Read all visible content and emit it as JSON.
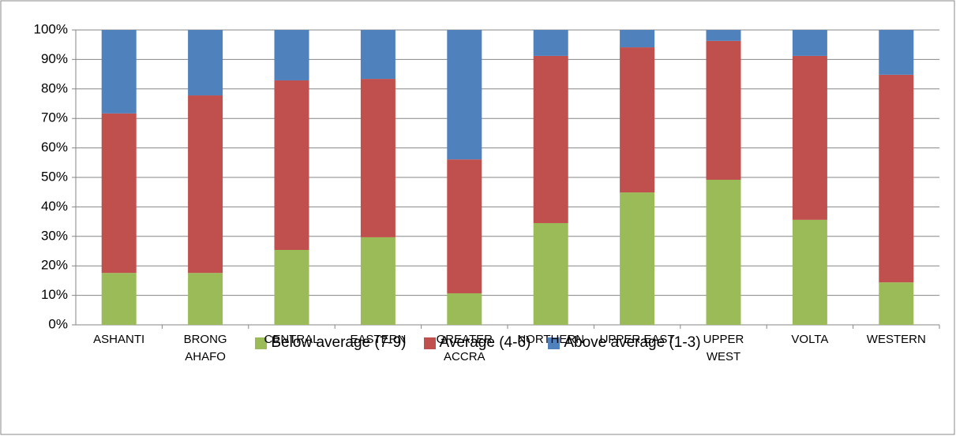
{
  "chart_data": {
    "type": "stacked_bar",
    "categories": [
      "ASHANTI",
      "BRONG\nAHAFO",
      "CENTRAL",
      "EASTERN",
      "GREATER\nACCRA",
      "NORTHERN",
      "UPPER EAST",
      "UPPER\nWEST",
      "VOLTA",
      "WESTERN"
    ],
    "series": [
      {
        "name": "Below average (7-9)",
        "color": "#9bbb59",
        "values": [
          17.6,
          17.6,
          25.4,
          29.7,
          10.7,
          34.5,
          44.9,
          49.2,
          35.6,
          14.4
        ]
      },
      {
        "name": "Average (4-6)",
        "color": "#c0504d",
        "values": [
          54.1,
          60.2,
          57.5,
          53.7,
          45.4,
          56.7,
          49.2,
          47.1,
          55.6,
          70.4
        ]
      },
      {
        "name": "Above average (1-3)",
        "color": "#4f81bd",
        "values": [
          28.3,
          22.2,
          17.1,
          16.6,
          43.9,
          8.8,
          5.9,
          3.7,
          8.8,
          15.2
        ]
      }
    ],
    "ylim": [
      0,
      100
    ],
    "yticks": [
      {
        "value": 0,
        "label": "0%"
      },
      {
        "value": 10,
        "label": "10%"
      },
      {
        "value": 20,
        "label": "20%"
      },
      {
        "value": 30,
        "label": "30%"
      },
      {
        "value": 40,
        "label": "40%"
      },
      {
        "value": 50,
        "label": "50%"
      },
      {
        "value": 60,
        "label": "60%"
      },
      {
        "value": 70,
        "label": "70%"
      },
      {
        "value": 80,
        "label": "80%"
      },
      {
        "value": 90,
        "label": "90%"
      },
      {
        "value": 100,
        "label": "100%"
      }
    ],
    "grid": true,
    "legend": "bottom"
  }
}
